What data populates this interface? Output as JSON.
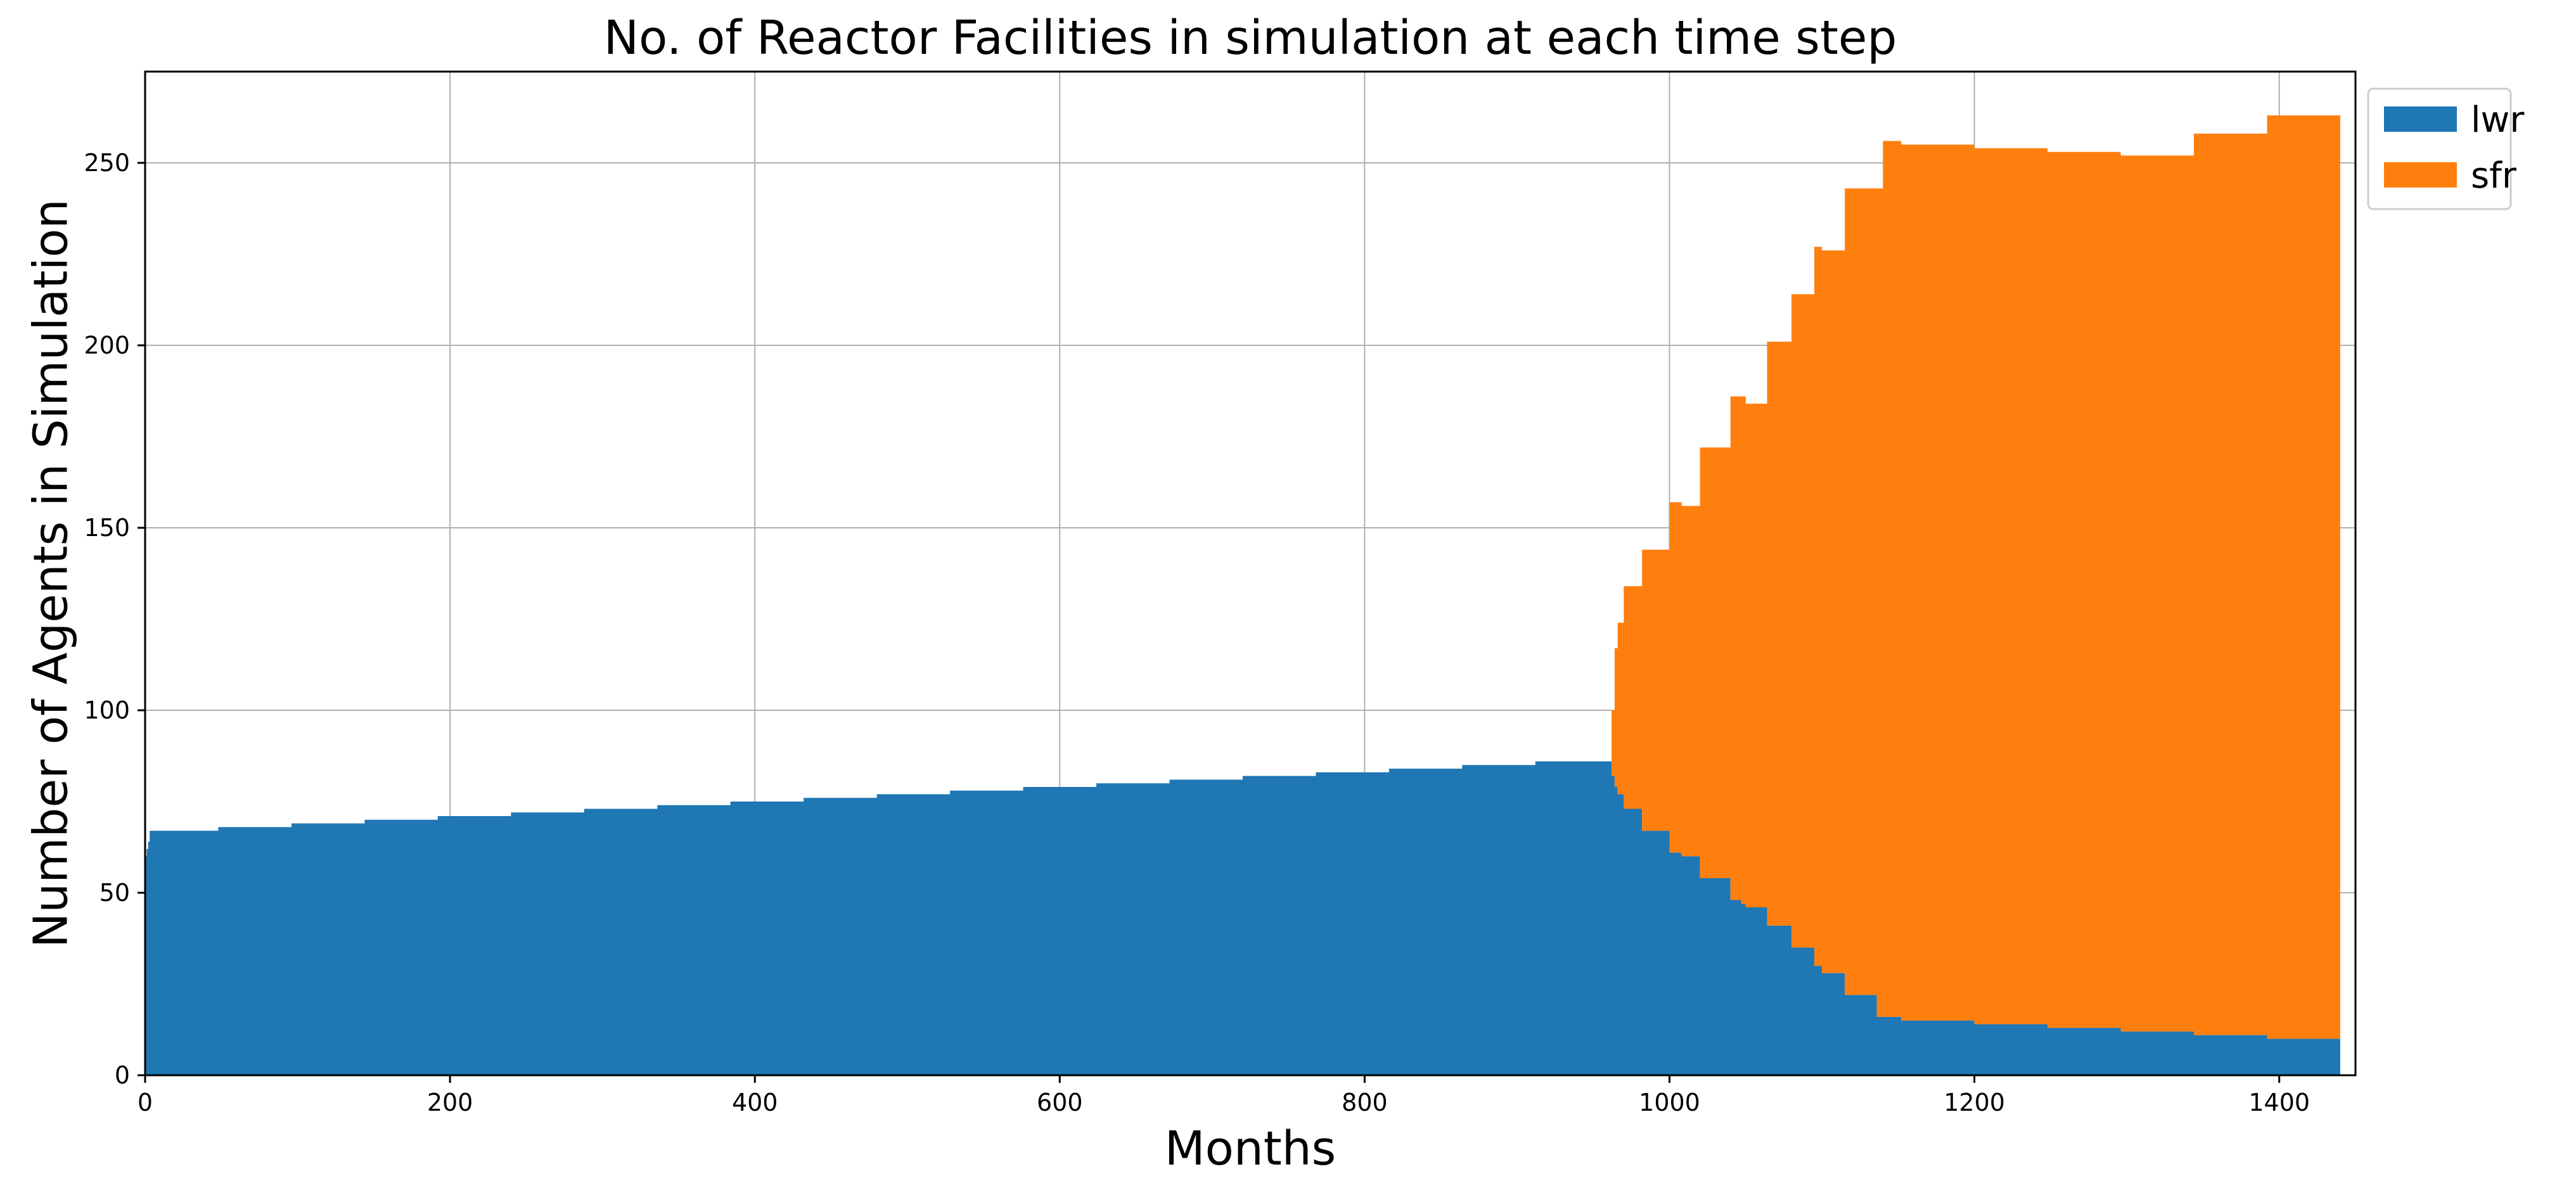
{
  "chart_data": {
    "type": "area",
    "stacked": true,
    "title": "No. of Reactor Facilities in simulation at each time step",
    "xlabel": "Months",
    "ylabel": "Number of Agents in Simulation",
    "xlim": [
      0,
      1450
    ],
    "ylim": [
      0,
      275
    ],
    "xticks": [
      0,
      200,
      400,
      600,
      800,
      1000,
      1200,
      1400
    ],
    "yticks": [
      0,
      50,
      100,
      150,
      200,
      250
    ],
    "grid": true,
    "legend_position": "outside-top-right",
    "series": [
      {
        "name": "lwr",
        "color": "#1f77b4",
        "x": [
          0,
          1,
          2,
          3,
          48,
          96,
          144,
          192,
          240,
          288,
          336,
          384,
          432,
          480,
          528,
          576,
          624,
          672,
          720,
          768,
          816,
          864,
          912,
          960,
          962,
          964,
          966,
          970,
          982,
          1000,
          1008,
          1020,
          1040,
          1047,
          1050,
          1064,
          1080,
          1095,
          1100,
          1115,
          1136,
          1140,
          1152,
          1164,
          1200,
          1248,
          1296,
          1344,
          1392,
          1440
        ],
        "y": [
          60,
          62,
          64,
          67,
          68,
          69,
          70,
          71,
          72,
          73,
          74,
          75,
          76,
          77,
          78,
          79,
          80,
          81,
          82,
          83,
          84,
          85,
          86,
          86,
          82,
          79,
          77,
          73,
          67,
          61,
          60,
          54,
          48,
          47,
          46,
          41,
          35,
          30,
          28,
          22,
          16,
          16,
          15,
          15,
          14,
          13,
          12,
          11,
          10,
          10
        ]
      },
      {
        "name": "sfr",
        "color": "#ff7f0e",
        "x": [
          0,
          1,
          2,
          3,
          48,
          96,
          144,
          192,
          240,
          288,
          336,
          384,
          432,
          480,
          528,
          576,
          624,
          672,
          720,
          768,
          816,
          864,
          912,
          960,
          962,
          964,
          966,
          970,
          982,
          1000,
          1008,
          1020,
          1040,
          1047,
          1050,
          1064,
          1080,
          1095,
          1100,
          1115,
          1136,
          1140,
          1152,
          1164,
          1200,
          1248,
          1296,
          1344,
          1392,
          1440
        ],
        "y": [
          0,
          0,
          0,
          0,
          0,
          0,
          0,
          0,
          0,
          0,
          0,
          0,
          0,
          0,
          0,
          0,
          0,
          0,
          0,
          0,
          0,
          0,
          0,
          0,
          18,
          38,
          47,
          61,
          77,
          96,
          96,
          118,
          138,
          139,
          138,
          160,
          179,
          197,
          198,
          221,
          227,
          240,
          240,
          240,
          240,
          240,
          240,
          247,
          253,
          253
        ]
      }
    ]
  }
}
